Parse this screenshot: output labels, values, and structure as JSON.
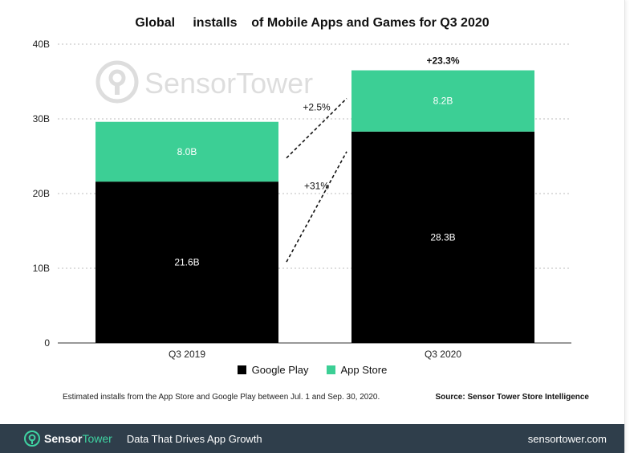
{
  "chart_data": {
    "type": "bar",
    "stacked": true,
    "title": "Global     installs    of Mobile Apps and Games for Q3 2020",
    "categories": [
      "Q3 2019",
      "Q3 2020"
    ],
    "series": [
      {
        "name": "Google Play",
        "values": [
          21.6,
          28.3
        ],
        "labels": [
          "21.6B",
          "28.3B"
        ],
        "color": "#000000"
      },
      {
        "name": "App Store",
        "values": [
          8.0,
          8.2
        ],
        "labels": [
          "8.0B",
          "8.2B"
        ],
        "color": "#3ccf95"
      }
    ],
    "ylim": [
      0,
      40
    ],
    "yticks": [
      0,
      10,
      20,
      30,
      40
    ],
    "ytick_labels": [
      "0",
      "10B",
      "20B",
      "30B",
      "40B"
    ],
    "grid": true,
    "growth_annotations": [
      {
        "label": "+2.5%",
        "segment": "App Store"
      },
      {
        "label": "+31%",
        "segment": "Google Play"
      }
    ],
    "total_growth_label": "+23.3%",
    "legend_position": "bottom"
  },
  "watermark": "SensorTower",
  "footnote": "Estimated installs from the App Store and Google Play between Jul. 1 and Sep. 30, 2020.",
  "source": "Source: Sensor Tower Store Intelligence",
  "footer": {
    "brand_sensor": "Sensor",
    "brand_tower": "Tower",
    "tagline": "Data That Drives App Growth",
    "url": "sensortower.com"
  },
  "colors": {
    "google_play": "#000000",
    "app_store": "#3ccf95",
    "footer_bg": "#2f3e4b",
    "brand_green": "#3fd3a2"
  }
}
